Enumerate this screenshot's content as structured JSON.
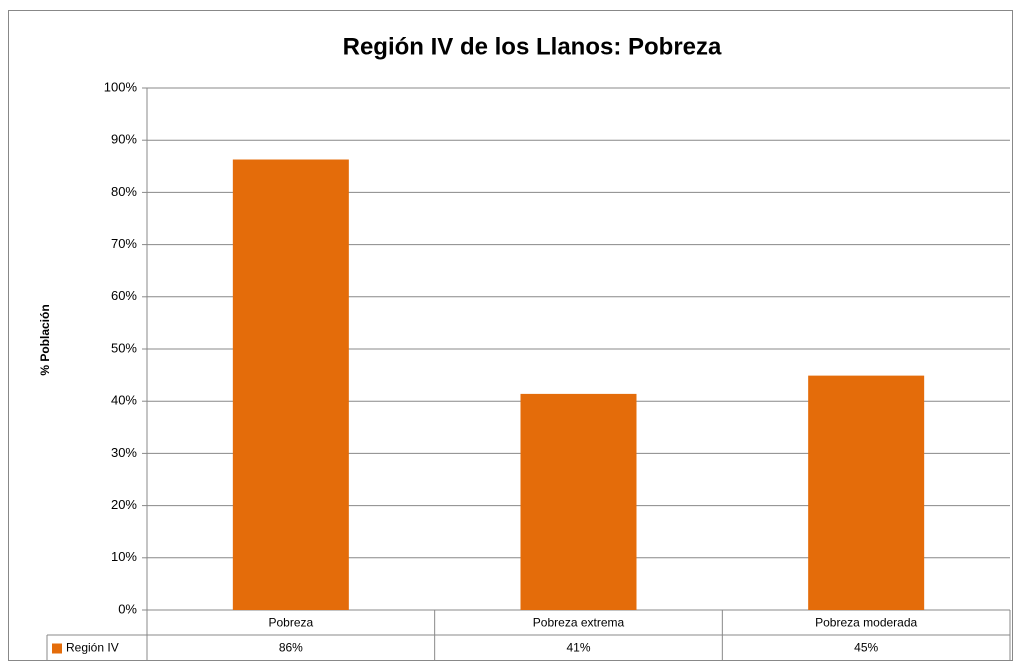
{
  "chart_data": {
    "type": "bar",
    "title": "Región IV de los Llanos: Pobreza",
    "y_label": "% Población",
    "categories": [
      "Pobreza",
      "Pobreza extrema",
      "Pobreza moderada"
    ],
    "series": [
      {
        "name": "Región IV",
        "color": "#e46c0a",
        "values": [
          86.3,
          41.4,
          44.9
        ],
        "value_labels": [
          "86%",
          "41%",
          "45%"
        ]
      }
    ],
    "ylim": [
      0,
      100
    ],
    "yticks": [
      {
        "value": 0,
        "label": "0%"
      },
      {
        "value": 10,
        "label": "10%"
      },
      {
        "value": 20,
        "label": "20%"
      },
      {
        "value": 30,
        "label": "30%"
      },
      {
        "value": 40,
        "label": "40%"
      },
      {
        "value": 50,
        "label": "50%"
      },
      {
        "value": 60,
        "label": "60%"
      },
      {
        "value": 70,
        "label": "70%"
      },
      {
        "value": 80,
        "label": "80%"
      },
      {
        "value": 90,
        "label": "90%"
      },
      {
        "value": 100,
        "label": "100%"
      }
    ],
    "grid": true
  }
}
